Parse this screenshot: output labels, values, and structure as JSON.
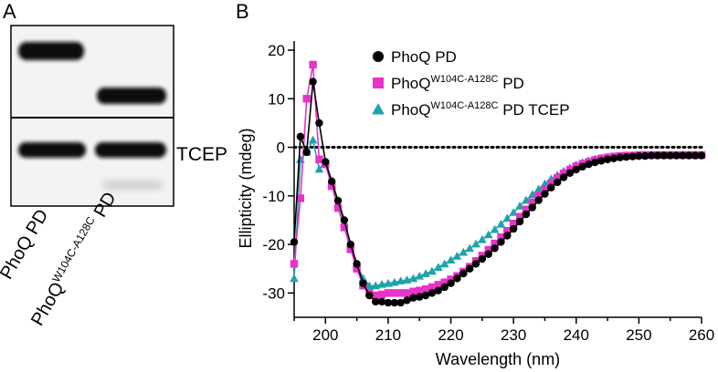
{
  "panel_a": {
    "letter": "A",
    "tcep_label": "TCEP",
    "lanes": [
      {
        "name": "PhoQ PD",
        "base": "PhoQ",
        "sup": "",
        "suffix": " PD"
      },
      {
        "name": "PhoQW104C-A128C PD",
        "base": "PhoQ",
        "sup": "W104C-A128C",
        "suffix": " PD"
      }
    ]
  },
  "panel_b": {
    "letter": "B"
  },
  "chart_data": {
    "type": "line",
    "title": "",
    "xlabel": "Wavelength (nm)",
    "ylabel": "Ellipticity (mdeg)",
    "xlim": [
      195,
      260
    ],
    "ylim": [
      -35,
      20
    ],
    "xticks": [
      200,
      210,
      220,
      230,
      240,
      250,
      260
    ],
    "yticks": [
      20,
      10,
      0,
      -10,
      -20,
      -30
    ],
    "reference_line": {
      "y": 0,
      "style": "dotted"
    },
    "legend": [
      {
        "base": "PhoQ PD",
        "sup": "",
        "suffix": "",
        "color": "#000000",
        "marker": "circle"
      },
      {
        "base": "PhoQ",
        "sup": "W104C-A128C",
        "suffix": " PD",
        "color": "#e832c9",
        "marker": "square"
      },
      {
        "base": "PhoQ",
        "sup": "W104C-A128C",
        "suffix": " PD TCEP",
        "color": "#1fa3a8",
        "marker": "triangle"
      }
    ],
    "x": [
      195,
      196,
      197,
      198,
      199,
      200,
      201,
      202,
      203,
      204,
      205,
      206,
      207,
      208,
      209,
      210,
      211,
      212,
      213,
      214,
      215,
      216,
      217,
      218,
      219,
      220,
      221,
      222,
      223,
      224,
      225,
      226,
      227,
      228,
      229,
      230,
      231,
      232,
      233,
      234,
      235,
      236,
      237,
      238,
      239,
      240,
      241,
      242,
      243,
      244,
      245,
      246,
      247,
      248,
      249,
      250,
      251,
      252,
      253,
      254,
      255,
      256,
      257,
      258,
      259,
      260
    ],
    "series": [
      {
        "name": "PhoQ PD",
        "color": "#000000",
        "marker": "circle",
        "values": [
          -19.5,
          2.2,
          -1,
          13.5,
          5,
          -3,
          -7,
          -11,
          -15,
          -20,
          -24,
          -28,
          -30.5,
          -31.8,
          -31.8,
          -32,
          -32,
          -32,
          -31.5,
          -31,
          -30.8,
          -30.5,
          -30,
          -29.5,
          -28.8,
          -28,
          -27,
          -26,
          -25,
          -24,
          -23,
          -22,
          -20.8,
          -19.5,
          -18.2,
          -16.8,
          -15.3,
          -13.8,
          -12.4,
          -10.9,
          -9.6,
          -8.3,
          -7.2,
          -6.2,
          -5.3,
          -4.6,
          -4,
          -3.5,
          -3.1,
          -2.8,
          -2.5,
          -2.3,
          -2.1,
          -2,
          -1.9,
          -1.8,
          -1.8,
          -1.7,
          -1.7,
          -1.7,
          -1.7,
          -1.7,
          -1.7,
          -1.7,
          -1.7,
          -1.7
        ]
      },
      {
        "name": "PhoQW104C-A128C PD",
        "color": "#e832c9",
        "marker": "square",
        "values": [
          -24,
          -10.5,
          10,
          17,
          -2.5,
          -3.5,
          -8,
          -12.5,
          -16.5,
          -21,
          -25,
          -28.5,
          -30,
          -30.5,
          -30.3,
          -30,
          -30,
          -30,
          -30,
          -29.7,
          -29.5,
          -29.2,
          -28.8,
          -28.3,
          -27.8,
          -27.2,
          -26.5,
          -25.6,
          -24.6,
          -23.4,
          -22.3,
          -21.1,
          -19.8,
          -18.5,
          -17.2,
          -15.7,
          -14.3,
          -12.8,
          -11.3,
          -9.9,
          -8.6,
          -7.4,
          -6.3,
          -5.4,
          -4.6,
          -3.9,
          -3.4,
          -3,
          -2.6,
          -2.3,
          -2.1,
          -1.9,
          -1.8,
          -1.7,
          -1.7,
          -1.6,
          -1.6,
          -1.6,
          -1.6,
          -1.6,
          -1.6,
          -1.6,
          -1.6,
          -1.6,
          -1.6,
          -1.6
        ]
      },
      {
        "name": "PhoQW104C-A128C PD TCEP",
        "color": "#1fa3a8",
        "marker": "triangle",
        "values": [
          -27,
          -2.5,
          -1,
          1.5,
          -4.5,
          -3,
          -7.5,
          -11.5,
          -15.5,
          -20,
          -24,
          -27,
          -28.5,
          -28.5,
          -28.2,
          -28,
          -27.8,
          -27.5,
          -27.3,
          -27,
          -26.5,
          -26,
          -25.5,
          -24.7,
          -24,
          -23.2,
          -22.4,
          -21.6,
          -20.8,
          -19.9,
          -19,
          -18,
          -16.9,
          -15.8,
          -14.6,
          -13.4,
          -12.1,
          -10.9,
          -9.7,
          -8.6,
          -7.5,
          -6.5,
          -5.7,
          -4.9,
          -4.2,
          -3.6,
          -3.1,
          -2.7,
          -2.4,
          -2.2,
          -2,
          -1.9,
          -1.8,
          -1.7,
          -1.7,
          -1.6,
          -1.6,
          -1.6,
          -1.6,
          -1.6,
          -1.6,
          -1.6,
          -1.6,
          -1.6,
          -1.6,
          -1.6
        ]
      }
    ]
  }
}
